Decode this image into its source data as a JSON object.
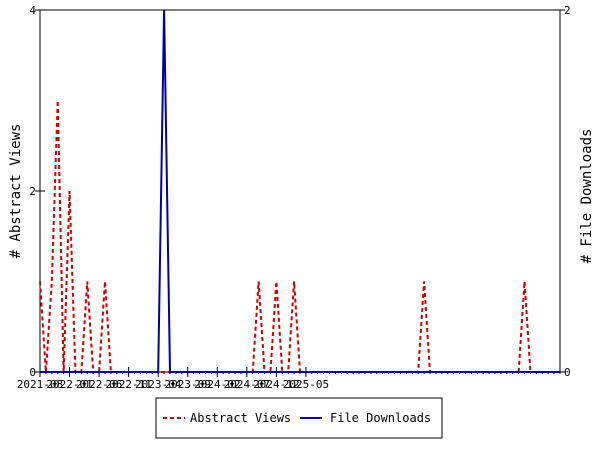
{
  "chart_data": {
    "type": "line",
    "xlabel": "",
    "ylabel_left": "# Abstract Views",
    "ylabel_right": "# File Downloads",
    "x_start": "2021-08",
    "x_end": "2025-09",
    "x_tick_labels": [
      "2021-08",
      "2022-01",
      "2022-06",
      "2022-11",
      "2023-04",
      "2023-09",
      "2024-02",
      "2024-07",
      "2024-12",
      "2025-05"
    ],
    "ylim_left": [
      0,
      4
    ],
    "ylim_right": [
      0,
      2
    ],
    "y_ticks_left": [
      "0",
      "2",
      "4"
    ],
    "y_ticks_right": [
      "0",
      "2"
    ],
    "grid": false,
    "legend_position": "bottom",
    "series": [
      {
        "name": "Abstract Views",
        "axis": "left",
        "style": "dashed",
        "color": "#cc0000",
        "values": [
          1,
          0,
          1,
          3,
          0,
          2,
          0,
          0,
          1,
          0,
          0,
          1,
          0,
          0,
          0,
          0,
          0,
          0,
          0,
          0,
          0,
          0,
          0,
          0,
          0,
          0,
          0,
          0,
          0,
          0,
          0,
          0,
          0,
          0,
          0,
          0,
          0,
          1,
          0,
          0,
          1,
          0,
          0,
          1,
          0,
          0,
          0,
          0,
          0,
          0,
          0,
          0,
          0,
          0,
          0,
          0,
          0,
          0,
          0,
          0,
          0,
          0,
          0,
          0,
          0,
          1,
          0,
          0,
          0,
          0,
          0,
          0,
          0,
          0,
          0,
          0,
          0,
          0,
          0,
          0,
          0,
          0,
          1,
          0,
          0,
          0,
          0,
          0,
          0
        ]
      },
      {
        "name": "File Downloads",
        "axis": "right",
        "style": "solid",
        "color": "#0000aa",
        "values": [
          0,
          0,
          0,
          0,
          0,
          0,
          0,
          0,
          0,
          0,
          0,
          0,
          0,
          0,
          0,
          0,
          0,
          0,
          0,
          0,
          0,
          2,
          0,
          0,
          0,
          0,
          0,
          0,
          0,
          0,
          0,
          0,
          0,
          0,
          0,
          0,
          0,
          0,
          0,
          0,
          0,
          0,
          0,
          0,
          0,
          0,
          0,
          0,
          0,
          0,
          0,
          0,
          0,
          0,
          0,
          0,
          0,
          0,
          0,
          0,
          0,
          0,
          0,
          0,
          0,
          0,
          0,
          0,
          0,
          0,
          0,
          0,
          0,
          0,
          0,
          0,
          0,
          0,
          0,
          0,
          0,
          0,
          0,
          0,
          0,
          0,
          0,
          0,
          0
        ]
      }
    ]
  }
}
